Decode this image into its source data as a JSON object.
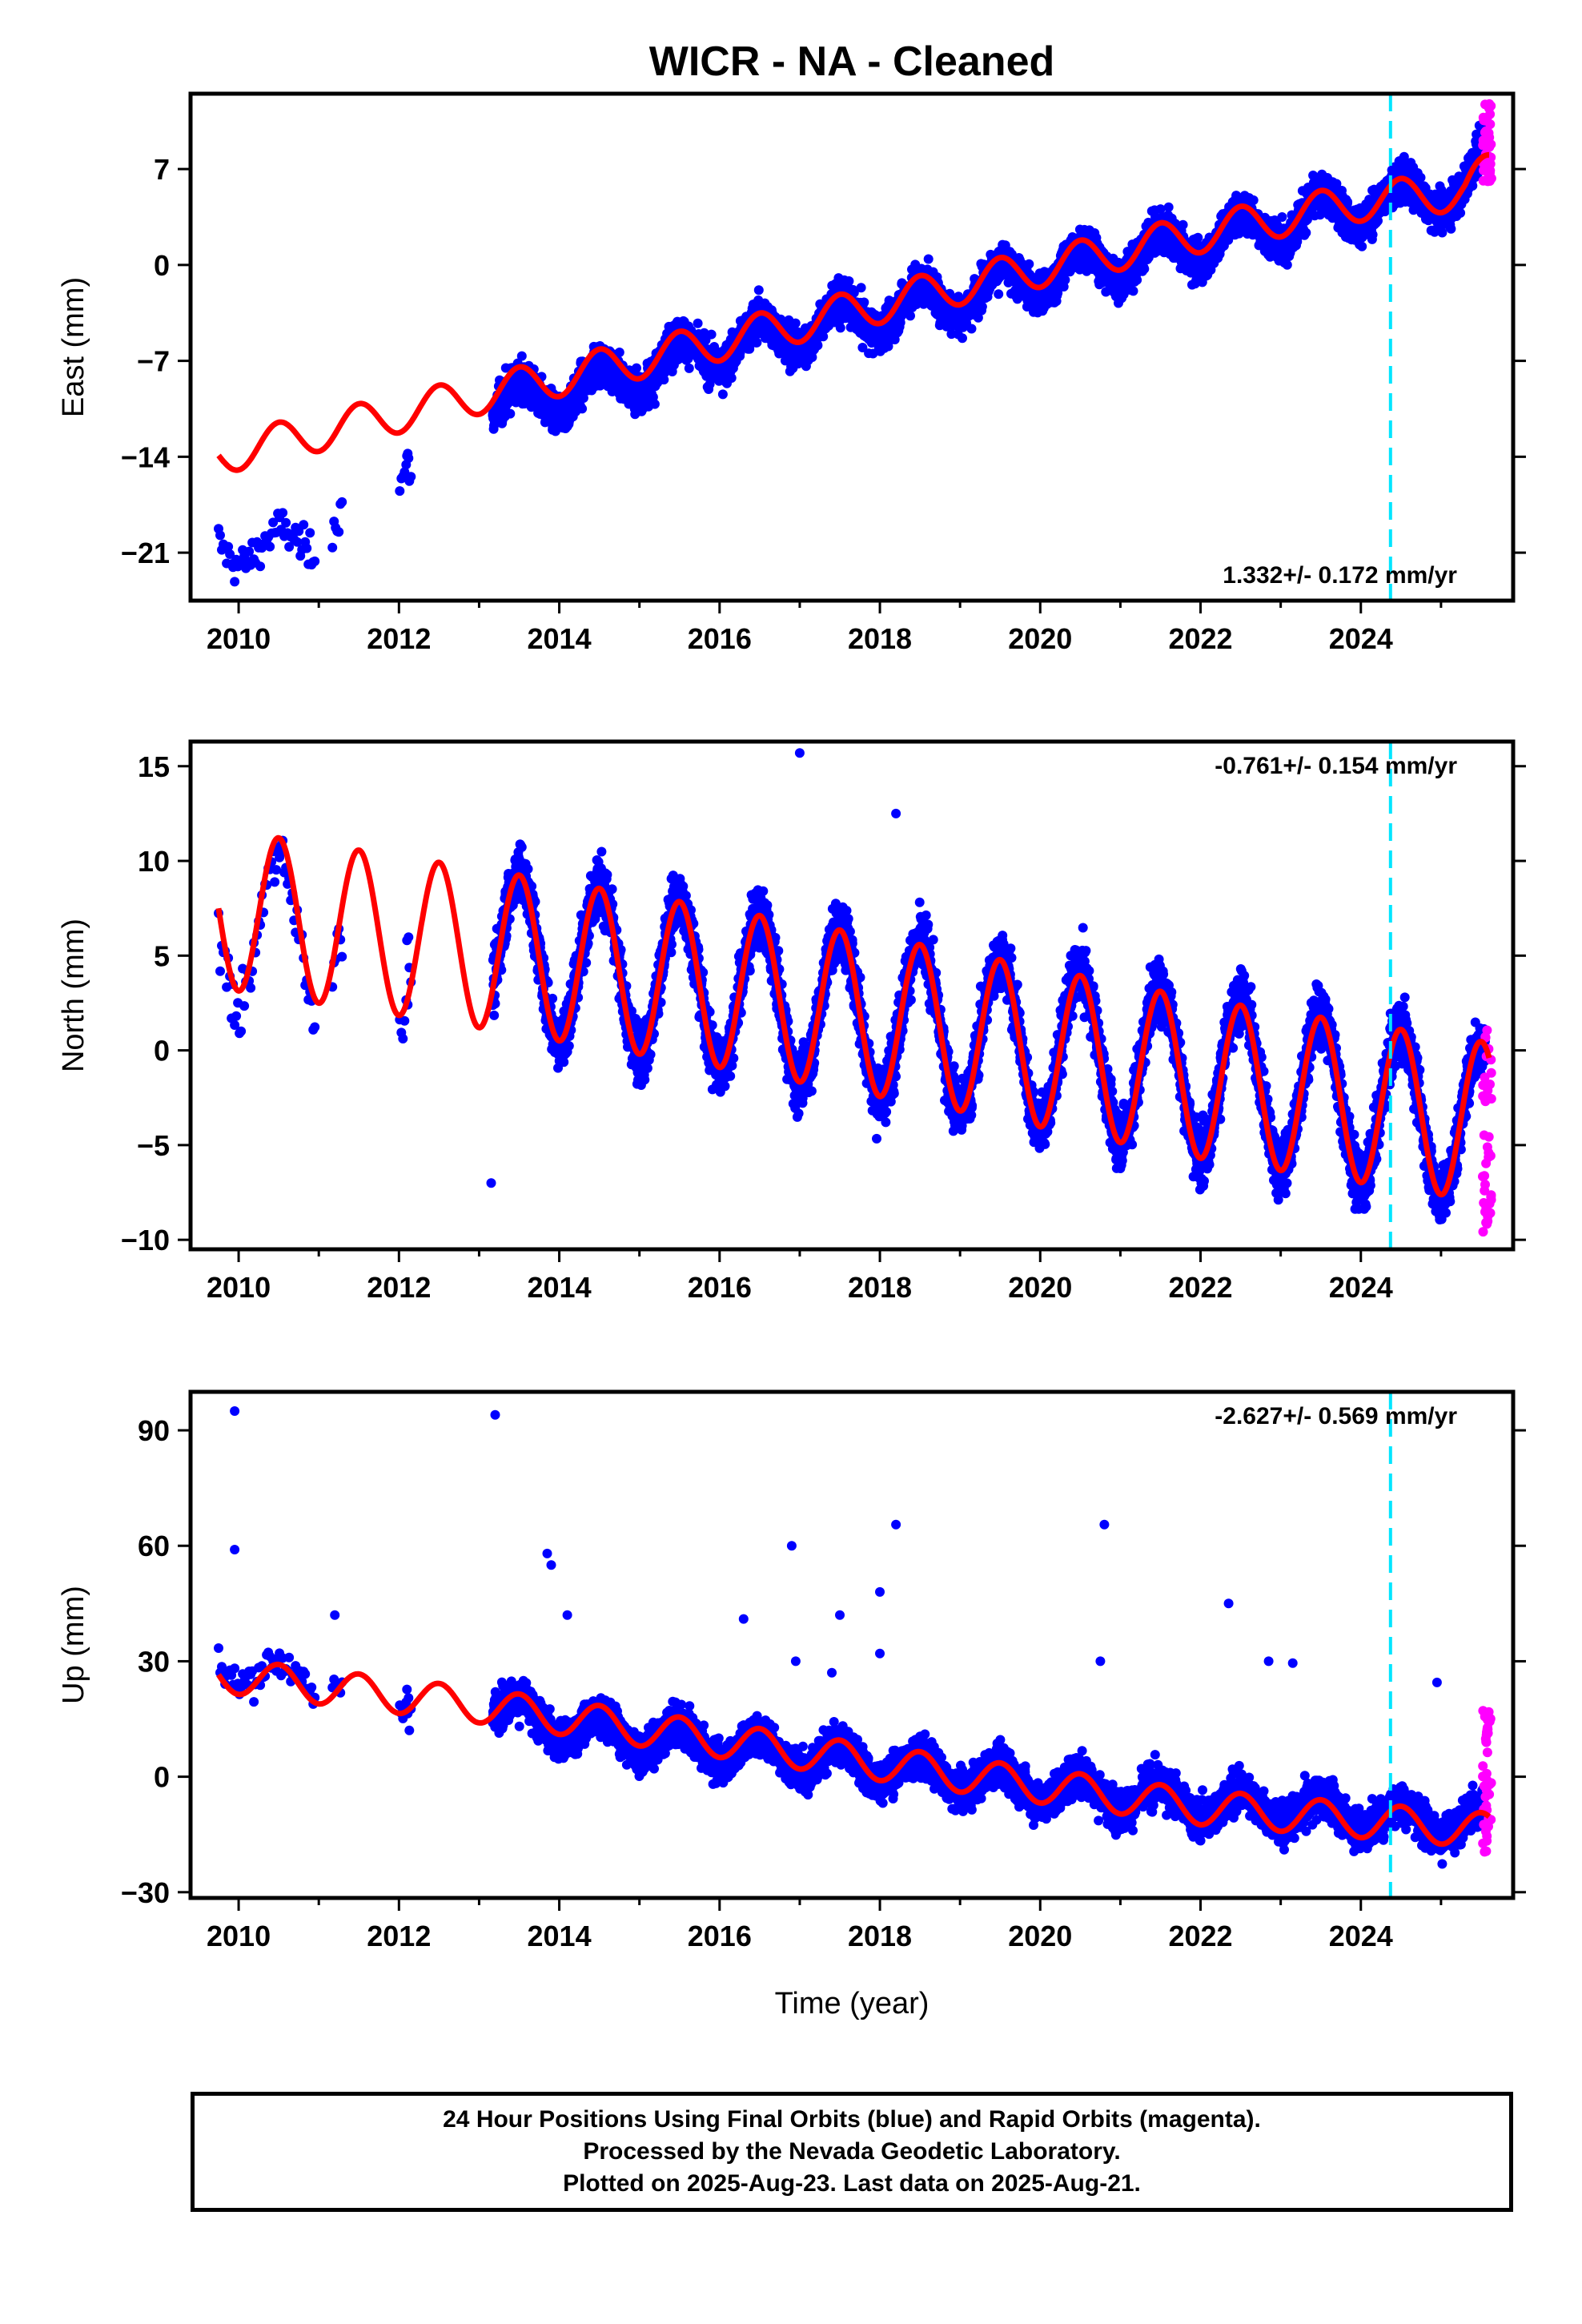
{
  "figure": {
    "title": "WICR  - NA - Cleaned",
    "xlabel": "Time (year)",
    "footer_lines": [
      "24 Hour Positions Using Final Orbits (blue) and Rapid Orbits (magenta).",
      "Processed by the Nevada Geodetic Laboratory.",
      "Plotted on 2025-Aug-23. Last data on 2025-Aug-21."
    ]
  },
  "colors": {
    "final_orbits": "#0000ff",
    "rapid_orbits": "#ff00ff",
    "model_fit": "#ff0000",
    "event_marker": "#00e5ff"
  },
  "chart_data": [
    {
      "type": "scatter",
      "component": "East",
      "ylabel": "East (mm)",
      "ylim": [
        -24.5,
        12.5
      ],
      "yticks": [
        7,
        0,
        -7,
        -14,
        -21
      ],
      "ytick_labels": [
        "7",
        "0",
        "−7",
        "−14",
        "−21"
      ],
      "xlim": [
        2009.4,
        2025.9
      ],
      "xticks": [
        2010,
        2012,
        2014,
        2016,
        2018,
        2020,
        2022,
        2024
      ],
      "xtick_labels": [
        "2010",
        "2012",
        "2014",
        "2016",
        "2018",
        "2020",
        "2022",
        "2024"
      ],
      "rate_label": "1.332+/- 0.172 mm/yr",
      "rate_position": "bottom-right",
      "series": [
        {
          "kind": "points",
          "color": "final_orbits",
          "trend": [
            [
              2009.75,
              -20.2
            ],
            [
              2010.4,
              -20.9
            ],
            [
              2010.9,
              -20.0
            ],
            [
              2011.2,
              -18.4
            ],
            [
              2012.1,
              -14.0
            ],
            [
              2013.2,
              -10.3
            ],
            [
              2014.0,
              -9.5
            ],
            [
              2016.0,
              -6.0
            ],
            [
              2018.0,
              -3.5
            ],
            [
              2020.0,
              -0.8
            ],
            [
              2022.0,
              1.7
            ],
            [
              2024.0,
              4.4
            ],
            [
              2025.3,
              5.5
            ],
            [
              2025.55,
              7.4
            ]
          ],
          "annual_amplitude": 1.4,
          "scatter": 1.2,
          "gaps": [
            [
              2011.3,
              2012.0
            ],
            [
              2012.15,
              2013.15
            ]
          ]
        },
        {
          "kind": "points",
          "color": "rapid_orbits",
          "x_range": [
            2025.52,
            2025.63
          ],
          "y_range": [
            6.0,
            11.8
          ]
        },
        {
          "kind": "model",
          "color": "model_fit",
          "x_range": [
            2009.75,
            2025.6
          ],
          "annual_amplitude": 1.4,
          "trend": [
            [
              2009.75,
              -13.9
            ],
            [
              2013.0,
              -9.5
            ],
            [
              2016.0,
              -5.6
            ],
            [
              2019.0,
              -1.5
            ],
            [
              2022.0,
              2.3
            ],
            [
              2024.0,
              4.6
            ],
            [
              2025.3,
              5.4
            ],
            [
              2025.6,
              6.9
            ]
          ]
        },
        {
          "kind": "vline",
          "color": "event_marker",
          "x": 2024.37
        }
      ]
    },
    {
      "type": "scatter",
      "component": "North",
      "ylabel": "North (mm)",
      "ylim": [
        -10.5,
        16.3
      ],
      "yticks": [
        15,
        10,
        5,
        0,
        -5,
        -10
      ],
      "ytick_labels": [
        "15",
        "10",
        "5",
        "0",
        "−5",
        "−10"
      ],
      "xlim": [
        2009.4,
        2025.9
      ],
      "xticks": [
        2010,
        2012,
        2014,
        2016,
        2018,
        2020,
        2022,
        2024
      ],
      "xtick_labels": [
        "2010",
        "2012",
        "2014",
        "2016",
        "2018",
        "2020",
        "2022",
        "2024"
      ],
      "rate_label": "-0.761+/- 0.154 mm/yr",
      "rate_position": "top-right",
      "series": [
        {
          "kind": "points",
          "color": "final_orbits",
          "trend": [
            [
              2009.75,
              6.5
            ],
            [
              2013.2,
              5.3
            ],
            [
              2014.0,
              4.8
            ],
            [
              2016.0,
              3.3
            ],
            [
              2018.0,
              1.8
            ],
            [
              2020.0,
              0.3
            ],
            [
              2022.0,
              -1.2
            ],
            [
              2024.0,
              -2.7
            ],
            [
              2025.55,
              -3.9
            ]
          ],
          "annual_amplitude": 4.2,
          "scatter": 1.3,
          "gaps": [
            [
              2011.3,
              2012.0
            ],
            [
              2012.15,
              2013.15
            ]
          ],
          "outliers": [
            [
              2013.15,
              -7.0
            ],
            [
              2017.0,
              15.7
            ],
            [
              2018.2,
              12.5
            ]
          ]
        },
        {
          "kind": "points",
          "color": "rapid_orbits",
          "x_range": [
            2025.52,
            2025.63
          ],
          "y_range": [
            -10.0,
            1.7
          ]
        },
        {
          "kind": "model",
          "color": "model_fit",
          "x_range": [
            2009.75,
            2025.6
          ],
          "annual_amplitude": 4.2,
          "trend": [
            [
              2009.75,
              7.5
            ],
            [
              2013.0,
              5.4
            ],
            [
              2016.0,
              3.3
            ],
            [
              2019.0,
              1.0
            ],
            [
              2022.0,
              -1.5
            ],
            [
              2025.6,
              -3.8
            ]
          ]
        },
        {
          "kind": "vline",
          "color": "event_marker",
          "x": 2024.37
        }
      ]
    },
    {
      "type": "scatter",
      "component": "Up",
      "ylabel": "Up (mm)",
      "ylim": [
        -31.5,
        100
      ],
      "yticks": [
        90,
        60,
        30,
        0,
        -30
      ],
      "ytick_labels": [
        "90",
        "60",
        "30",
        "0",
        "−30"
      ],
      "xlim": [
        2009.4,
        2025.9
      ],
      "xticks": [
        2010,
        2012,
        2014,
        2016,
        2018,
        2020,
        2022,
        2024
      ],
      "xtick_labels": [
        "2010",
        "2012",
        "2014",
        "2016",
        "2018",
        "2020",
        "2022",
        "2024"
      ],
      "rate_label": "-2.627+/- 0.569 mm/yr",
      "rate_position": "top-right",
      "series": [
        {
          "kind": "points",
          "color": "final_orbits",
          "trend": [
            [
              2009.75,
              29.0
            ],
            [
              2011.0,
              24.5
            ],
            [
              2013.2,
              18.0
            ],
            [
              2014.0,
              13.0
            ],
            [
              2016.0,
              8.0
            ],
            [
              2018.0,
              3.0
            ],
            [
              2020.0,
              -2.5
            ],
            [
              2022.0,
              -7.0
            ],
            [
              2024.0,
              -10.0
            ],
            [
              2025.55,
              -12.5
            ]
          ],
          "annual_amplitude": 4.0,
          "scatter": 4.2,
          "gaps": [
            [
              2011.3,
              2012.0
            ],
            [
              2012.15,
              2013.15
            ]
          ],
          "outliers": [
            [
              2009.95,
              95.0
            ],
            [
              2013.2,
              94.0
            ],
            [
              2009.95,
              59.0
            ],
            [
              2013.85,
              58.0
            ],
            [
              2018.2,
              65.5
            ],
            [
              2020.8,
              65.5
            ],
            [
              2016.9,
              60.0
            ],
            [
              2017.5,
              42.0
            ],
            [
              2018.0,
              48.0
            ],
            [
              2022.35,
              45.0
            ],
            [
              2014.1,
              42.0
            ],
            [
              2011.2,
              42.0
            ],
            [
              2016.3,
              41.0
            ],
            [
              2013.9,
              55.0
            ],
            [
              2018.0,
              32.0
            ],
            [
              2020.75,
              30.0
            ],
            [
              2022.85,
              30.0
            ],
            [
              2023.15,
              29.5
            ],
            [
              2024.95,
              24.5
            ],
            [
              2017.4,
              27.0
            ],
            [
              2016.95,
              30.0
            ]
          ]
        },
        {
          "kind": "points",
          "color": "rapid_orbits",
          "x_range": [
            2025.52,
            2025.63
          ],
          "y_range": [
            -20.0,
            20.0
          ]
        },
        {
          "kind": "model",
          "color": "model_fit",
          "x_range": [
            2009.75,
            2025.6
          ],
          "annual_amplitude": 4.5,
          "trend": [
            [
              2009.75,
              26.5
            ],
            [
              2013.0,
              18.5
            ],
            [
              2016.0,
              9.5
            ],
            [
              2019.0,
              0.5
            ],
            [
              2022.0,
              -8.0
            ],
            [
              2025.6,
              -14.0
            ]
          ]
        },
        {
          "kind": "vline",
          "color": "event_marker",
          "x": 2024.37
        }
      ]
    }
  ]
}
